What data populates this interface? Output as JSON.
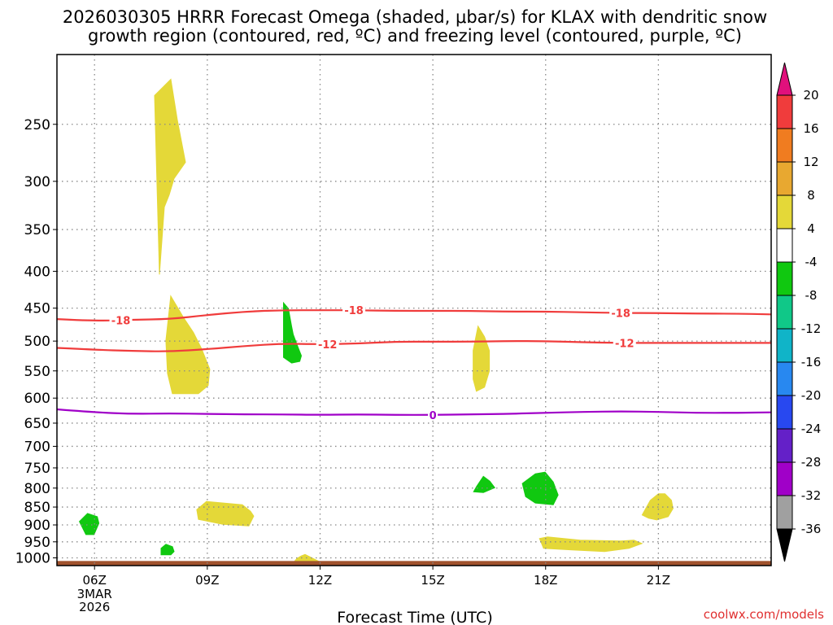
{
  "title": {
    "line1": "2026030305 HRRR Forecast Omega (shaded, μbar/s) for KLAX with dendritic snow",
    "line2": "growth region (contoured, red, ºC) and freezing level (contoured, purple, ºC)"
  },
  "credit": "coolwx.com/models",
  "chart_data": {
    "type": "time-height cross section",
    "title": "2026030305 HRRR Forecast Omega (shaded, μbar/s) for KLAX with dendritic snow growth region (contoured, red, ºC) and freezing level (contoured, purple, ºC)",
    "xlabel": "Forecast Time (UTC)",
    "ylabel": "",
    "xlim_hours_utc": [
      5,
      24
    ],
    "ylim_hPa": [
      200,
      1025
    ],
    "y_scale": "log-pressure (inverted)",
    "grid": true,
    "x_ticks": [
      {
        "hour": 6,
        "label": "06Z",
        "sub1": "3MAR",
        "sub2": "2026"
      },
      {
        "hour": 9,
        "label": "09Z"
      },
      {
        "hour": 12,
        "label": "12Z"
      },
      {
        "hour": 15,
        "label": "15Z"
      },
      {
        "hour": 18,
        "label": "18Z"
      },
      {
        "hour": 21,
        "label": "21Z"
      }
    ],
    "y_ticks": [
      250,
      300,
      350,
      400,
      450,
      500,
      550,
      600,
      650,
      700,
      750,
      800,
      850,
      900,
      950,
      1000
    ],
    "ground_level_hPa": 1010,
    "contours": [
      {
        "name": "-18",
        "color": "#f03c3c",
        "points": [
          [
            5,
            466
          ],
          [
            6,
            469
          ],
          [
            7,
            467
          ],
          [
            8,
            466
          ],
          [
            9,
            460
          ],
          [
            10,
            455
          ],
          [
            11,
            453
          ],
          [
            12,
            453
          ],
          [
            13,
            453
          ],
          [
            14,
            454
          ],
          [
            15,
            454
          ],
          [
            16,
            454
          ],
          [
            17,
            455
          ],
          [
            18,
            455
          ],
          [
            19,
            456
          ],
          [
            20,
            457
          ],
          [
            21,
            457
          ],
          [
            22,
            458
          ],
          [
            23,
            458
          ],
          [
            24,
            459
          ]
        ],
        "labels": [
          {
            "hour": 6.7
          },
          {
            "hour": 12.9
          },
          {
            "hour": 20.0
          }
        ]
      },
      {
        "name": "-12",
        "color": "#f03c3c",
        "points": [
          [
            5,
            511
          ],
          [
            6,
            514
          ],
          [
            7,
            516
          ],
          [
            8,
            517
          ],
          [
            9,
            513
          ],
          [
            10,
            508
          ],
          [
            11,
            504
          ],
          [
            12,
            505
          ],
          [
            13,
            504
          ],
          [
            14,
            501
          ],
          [
            15,
            501
          ],
          [
            16,
            501
          ],
          [
            17,
            500
          ],
          [
            18,
            500
          ],
          [
            19,
            502
          ],
          [
            20,
            503
          ],
          [
            21,
            503
          ],
          [
            22,
            503
          ],
          [
            23,
            503
          ],
          [
            24,
            503
          ]
        ],
        "labels": [
          {
            "hour": 12.2
          },
          {
            "hour": 20.1
          }
        ]
      },
      {
        "name": "0",
        "color": "#a000c8",
        "points": [
          [
            5,
            622
          ],
          [
            6,
            628
          ],
          [
            7,
            631
          ],
          [
            8,
            630
          ],
          [
            9,
            631
          ],
          [
            10,
            632
          ],
          [
            11,
            632
          ],
          [
            12,
            633
          ],
          [
            13,
            632
          ],
          [
            14,
            633
          ],
          [
            15,
            633
          ],
          [
            16,
            632
          ],
          [
            17,
            631
          ],
          [
            18,
            629
          ],
          [
            19,
            627
          ],
          [
            20,
            626
          ],
          [
            21,
            627
          ],
          [
            22,
            629
          ],
          [
            23,
            629
          ],
          [
            24,
            628
          ]
        ],
        "labels": [
          {
            "hour": 15.0
          }
        ]
      }
    ],
    "omega_regions": [
      {
        "range": "4 to 8",
        "color": "#e4d838",
        "center_hour": 7.9,
        "center_hPa": 330
      },
      {
        "range": "4 to 8",
        "color": "#e4d838",
        "center_hour": 8.2,
        "center_hPa": 540
      },
      {
        "range": "4 to 8",
        "color": "#e4d838",
        "center_hour": 16.2,
        "center_hPa": 550
      },
      {
        "range": "4 to 8",
        "color": "#e4d838",
        "center_hour": 9.5,
        "center_hPa": 875
      },
      {
        "range": "4 to 8",
        "color": "#e4d838",
        "center_hour": 11.6,
        "center_hPa": 1010
      },
      {
        "range": "4 to 8",
        "color": "#e4d838",
        "center_hour": 20.0,
        "center_hPa": 970
      },
      {
        "range": "4 to 8",
        "color": "#e4d838",
        "center_hour": 21.0,
        "center_hPa": 845
      },
      {
        "range": "-8 to -4",
        "color": "#10c810",
        "center_hour": 11.2,
        "center_hPa": 500
      },
      {
        "range": "-8 to -4",
        "color": "#10c810",
        "center_hour": 16.3,
        "center_hPa": 795
      },
      {
        "range": "-8 to -4",
        "color": "#10c810",
        "center_hour": 17.9,
        "center_hPa": 805
      },
      {
        "range": "-8 to -4",
        "color": "#10c810",
        "center_hour": 5.9,
        "center_hPa": 895
      },
      {
        "range": "-8 to -4",
        "color": "#10c810",
        "center_hour": 7.9,
        "center_hPa": 975
      }
    ],
    "colorbar": {
      "labels": [
        "20",
        "16",
        "12",
        "8",
        "4",
        "-4",
        "-8",
        "-12",
        "-16",
        "-20",
        "-24",
        "-28",
        "-32",
        "-36"
      ],
      "colors": [
        "#f03c3c",
        "#f07c20",
        "#e8a830",
        "#e4d838",
        "#ffffff",
        "#10c810",
        "#10c888",
        "#10b4c8",
        "#2888f0",
        "#2848f0",
        "#6420c8",
        "#a000c8",
        "#a0a0a0"
      ],
      "over_color": "#e0107c",
      "under_color": "#000000"
    }
  }
}
